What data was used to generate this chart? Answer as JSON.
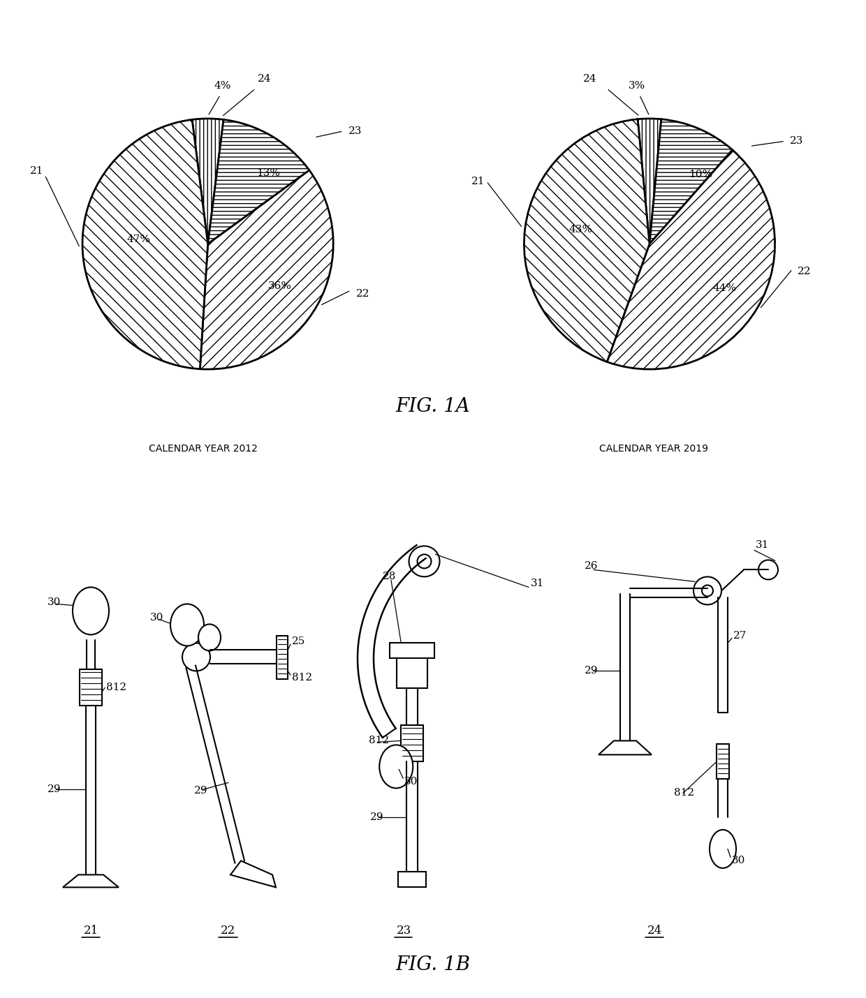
{
  "fig1a_title": "FIG. 1A",
  "fig1b_title": "FIG. 1B",
  "pie1": {
    "values": [
      47,
      36,
      13,
      4
    ],
    "labels": [
      "47%",
      "36%",
      "13%",
      "4%"
    ],
    "ref_labels": [
      "21",
      "22",
      "23",
      "24"
    ],
    "year": "CALENDAR YEAR 2012"
  },
  "pie2": {
    "values": [
      43,
      44,
      10,
      3
    ],
    "labels": [
      "43%",
      "44%",
      "10%",
      "3%"
    ],
    "ref_labels": [
      "21",
      "22",
      "23",
      "24"
    ],
    "year": "CALENDAR YEAR 2019"
  },
  "bg_color": "#ffffff",
  "lw": 1.5,
  "fs_label": 11,
  "fs_ref": 11,
  "fs_title": 20,
  "fs_year": 10
}
